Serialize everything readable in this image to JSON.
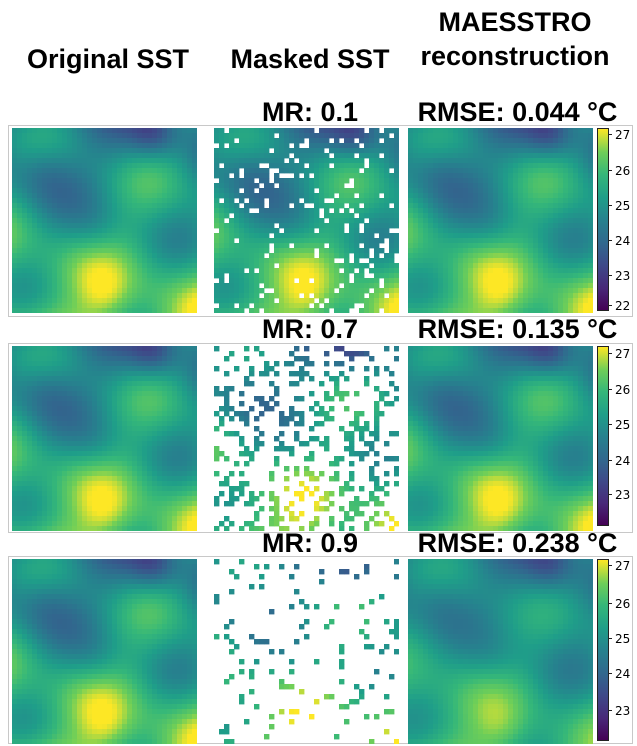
{
  "columns": {
    "original": "Original SST",
    "masked": "Masked SST",
    "recon_line1": "MAESSTRO",
    "recon_line2": "reconstruction"
  },
  "rows": [
    {
      "mr_label": "MR: 0.1",
      "mask_ratio": 0.1,
      "rmse_label": "RMSE: 0.044 °C",
      "colorbar_ticks": [
        "27",
        "26",
        "25",
        "24",
        "23",
        "22"
      ]
    },
    {
      "mr_label": "MR: 0.7",
      "mask_ratio": 0.7,
      "rmse_label": "RMSE: 0.135 °C",
      "colorbar_ticks": [
        "27",
        "26",
        "25",
        "24",
        "23"
      ]
    },
    {
      "mr_label": "MR: 0.9",
      "mask_ratio": 0.9,
      "rmse_label": "RMSE: 0.238 °C",
      "colorbar_ticks": [
        "27",
        "26",
        "25",
        "24",
        "23"
      ]
    }
  ],
  "colormap": [
    "#440154",
    "#482878",
    "#3e4a89",
    "#31688e",
    "#26828e",
    "#1f9e89",
    "#35b779",
    "#6ece58",
    "#fde725"
  ]
}
